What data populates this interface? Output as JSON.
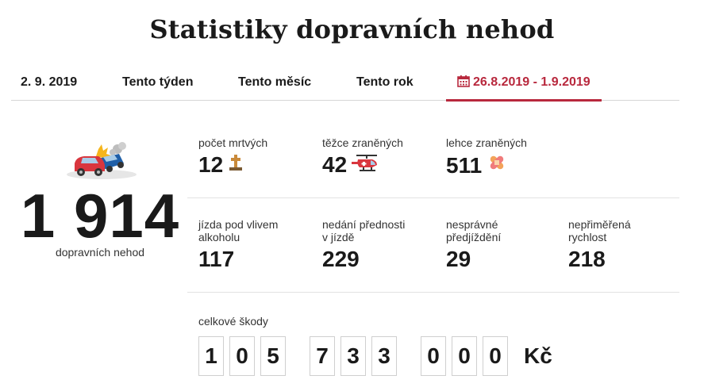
{
  "header": {
    "title": "Statistiky dopravních nehod"
  },
  "tabs": [
    {
      "label": "2. 9. 2019"
    },
    {
      "label": "Tento týden"
    },
    {
      "label": "Tento měsíc"
    },
    {
      "label": "Tento rok"
    },
    {
      "label": "26.8.2019 - 1.9.2019",
      "icon": "calendar-icon",
      "active": true
    }
  ],
  "accent_color": "#b8283d",
  "summary": {
    "total": "1 914",
    "caption": "dopravních nehod",
    "icon": "car-crash-icon"
  },
  "casualties": [
    {
      "label": "počet mrtvých",
      "value": "12",
      "icon": "grave-cross-icon"
    },
    {
      "label": "těžce zraněných",
      "value": "42",
      "icon": "helicopter-icon"
    },
    {
      "label": "lehce zraněných",
      "value": "511",
      "icon": "bandage-icon"
    }
  ],
  "causes": [
    {
      "label_line1": "jízda pod vlivem",
      "label_line2": "alkoholu",
      "value": "117"
    },
    {
      "label_line1": "nedání přednosti",
      "label_line2": "v jízdě",
      "value": "229"
    },
    {
      "label_line1": "nesprávné",
      "label_line2": "předjíždění",
      "value": "29"
    },
    {
      "label_line1": "nepřiměřená",
      "label_line2": "rychlost",
      "value": "218"
    }
  ],
  "damages": {
    "label": "celkové škody",
    "digits": [
      "1",
      "0",
      "5",
      "7",
      "3",
      "3",
      "0",
      "0",
      "0"
    ],
    "currency": "Kč"
  }
}
